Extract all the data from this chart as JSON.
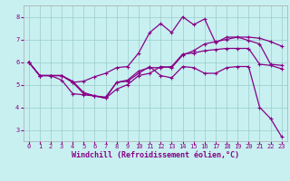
{
  "background_color": "#c8f0f0",
  "line_color": "#880088",
  "grid_color": "#99cccc",
  "xlabel": "Windchill (Refroidissement éolien,°C)",
  "xlim": [
    -0.5,
    23.5
  ],
  "ylim": [
    2.5,
    8.5
  ],
  "yticks": [
    3,
    4,
    5,
    6,
    7,
    8
  ],
  "xticks": [
    0,
    1,
    2,
    3,
    4,
    5,
    6,
    7,
    8,
    9,
    10,
    11,
    12,
    13,
    14,
    15,
    16,
    17,
    18,
    19,
    20,
    21,
    22,
    23
  ],
  "lines": [
    {
      "x": [
        0,
        1,
        2,
        3,
        4,
        5,
        6,
        7,
        8,
        9,
        10,
        11,
        12,
        13,
        14,
        15,
        16,
        17,
        18,
        19,
        20,
        21,
        22,
        23
      ],
      "y": [
        6.0,
        5.4,
        5.4,
        5.4,
        5.1,
        5.15,
        5.35,
        5.5,
        5.75,
        5.8,
        6.4,
        7.3,
        7.7,
        7.3,
        8.0,
        7.65,
        7.9,
        6.85,
        7.1,
        7.1,
        6.95,
        6.8,
        5.9,
        5.85
      ]
    },
    {
      "x": [
        0,
        1,
        2,
        3,
        4,
        5,
        6,
        7,
        8,
        9,
        10,
        11,
        12,
        13,
        14,
        15,
        16,
        17,
        18,
        19,
        20,
        21,
        22,
        23
      ],
      "y": [
        6.0,
        5.4,
        5.4,
        5.2,
        4.6,
        4.55,
        4.5,
        4.4,
        4.8,
        5.0,
        5.4,
        5.5,
        5.8,
        5.75,
        6.3,
        6.5,
        6.8,
        6.9,
        7.0,
        7.1,
        7.1,
        7.05,
        6.9,
        6.7
      ]
    },
    {
      "x": [
        0,
        1,
        2,
        3,
        4,
        5,
        6,
        7,
        8,
        9,
        10,
        11,
        12,
        13,
        14,
        15,
        16,
        17,
        18,
        19,
        20,
        21,
        22,
        23
      ],
      "y": [
        6.0,
        5.4,
        5.4,
        5.4,
        5.15,
        4.65,
        4.5,
        4.45,
        5.1,
        5.2,
        5.6,
        5.75,
        5.75,
        5.8,
        6.35,
        6.4,
        6.5,
        6.55,
        6.6,
        6.6,
        6.6,
        5.9,
        5.85,
        5.7
      ]
    },
    {
      "x": [
        0,
        1,
        2,
        3,
        4,
        5,
        6,
        7,
        8,
        9,
        10,
        11,
        12,
        13,
        14,
        15,
        16,
        17,
        18,
        19,
        20,
        21,
        22,
        23
      ],
      "y": [
        6.0,
        5.4,
        5.4,
        5.4,
        5.1,
        4.6,
        4.5,
        4.4,
        5.1,
        5.15,
        5.5,
        5.8,
        5.4,
        5.3,
        5.8,
        5.75,
        5.5,
        5.5,
        5.75,
        5.8,
        5.8,
        4.0,
        3.5,
        2.7
      ]
    }
  ],
  "marker": "P",
  "markersize": 2.5,
  "lw": 0.9,
  "tick_labelsize": 5.0,
  "xlabel_fontsize": 6.0,
  "xlabel_color": "#880088"
}
